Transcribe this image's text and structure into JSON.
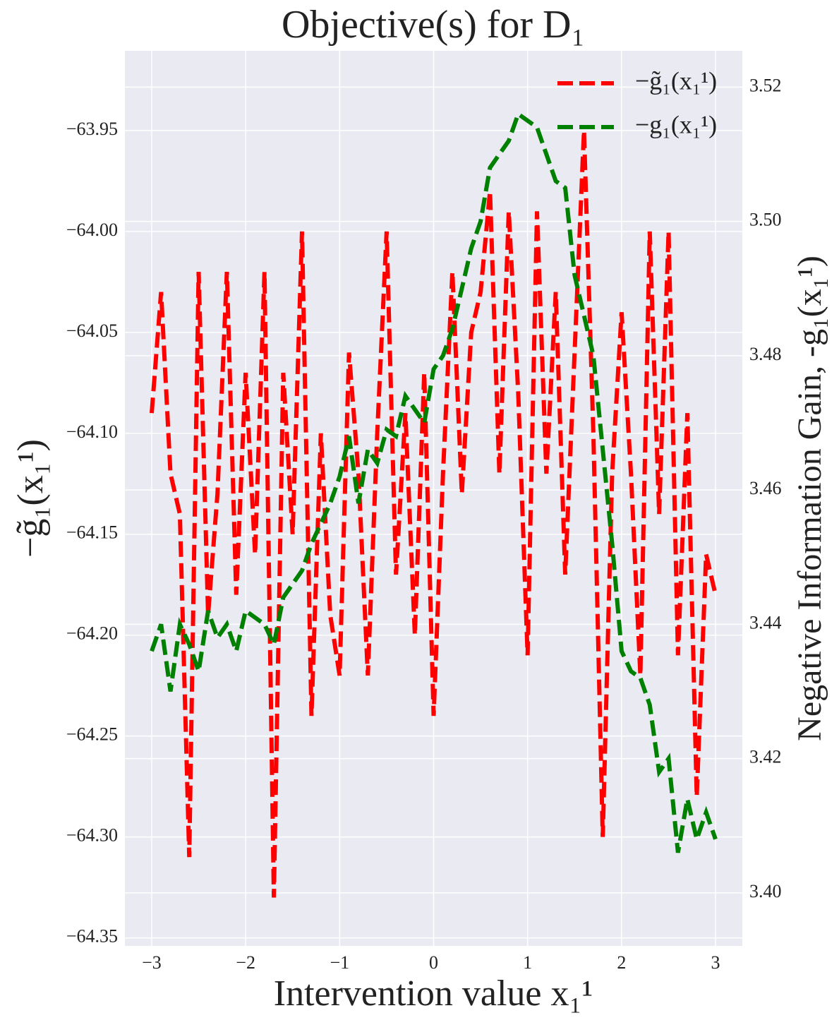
{
  "chart_data": {
    "type": "line",
    "title": "Objective(s) for D₁",
    "x_label": "Intervention value x₁¹",
    "y_label": "−g̃₁(x₁¹)",
    "y2_label": "Negative Information Gain, -g₁(x₁¹)",
    "x": [
      -3.0,
      -2.9,
      -2.8,
      -2.7,
      -2.6,
      -2.5,
      -2.4,
      -2.3,
      -2.2,
      -2.1,
      -2.0,
      -1.9,
      -1.8,
      -1.7,
      -1.6,
      -1.5,
      -1.4,
      -1.3,
      -1.2,
      -1.1,
      -1.0,
      -0.9,
      -0.8,
      -0.7,
      -0.6,
      -0.5,
      -0.4,
      -0.3,
      -0.2,
      -0.1,
      0.0,
      0.1,
      0.2,
      0.3,
      0.4,
      0.5,
      0.6,
      0.7,
      0.8,
      0.9,
      1.0,
      1.1,
      1.2,
      1.3,
      1.4,
      1.5,
      1.6,
      1.7,
      1.8,
      1.9,
      2.0,
      2.1,
      2.2,
      2.3,
      2.4,
      2.5,
      2.6,
      2.7,
      2.8,
      2.9,
      3.0
    ],
    "series": [
      {
        "name": "−g̃₁(x₁¹)",
        "color": "#ff0000",
        "axis": "y",
        "values": [
          -64.09,
          -64.03,
          -64.12,
          -64.14,
          -64.31,
          -64.02,
          -64.19,
          -64.13,
          -64.02,
          -64.18,
          -64.07,
          -64.16,
          -64.02,
          -64.33,
          -64.07,
          -64.15,
          -64.0,
          -64.24,
          -64.1,
          -64.19,
          -64.22,
          -64.06,
          -64.12,
          -64.22,
          -64.1,
          -64.0,
          -64.17,
          -64.09,
          -64.2,
          -64.07,
          -64.24,
          -64.12,
          -64.02,
          -64.13,
          -64.05,
          -64.03,
          -63.98,
          -64.12,
          -63.99,
          -64.08,
          -64.21,
          -63.99,
          -64.12,
          -64.03,
          -64.17,
          -64.06,
          -63.95,
          -64.1,
          -64.3,
          -64.12,
          -64.04,
          -64.12,
          -64.22,
          -64.0,
          -64.14,
          -64.0,
          -64.21,
          -64.09,
          -64.28,
          -64.16,
          -64.18
        ]
      },
      {
        "name": "−g₁(x₁¹)",
        "color": "#008000",
        "axis": "y2",
        "values": [
          3.436,
          3.44,
          3.43,
          3.44,
          3.437,
          3.433,
          3.442,
          3.438,
          3.44,
          3.436,
          3.442,
          3.441,
          3.44,
          3.437,
          3.444,
          3.446,
          3.448,
          3.452,
          3.455,
          3.458,
          3.462,
          3.468,
          3.458,
          3.466,
          3.464,
          3.469,
          3.468,
          3.474,
          3.472,
          3.47,
          3.478,
          3.48,
          3.484,
          3.49,
          3.496,
          3.5,
          3.508,
          3.51,
          3.512,
          3.516,
          3.515,
          3.514,
          3.51,
          3.506,
          3.505,
          3.492,
          3.486,
          3.48,
          3.466,
          3.452,
          3.436,
          3.433,
          3.432,
          3.428,
          3.418,
          3.42,
          3.406,
          3.414,
          3.408,
          3.412,
          3.408
        ]
      }
    ],
    "xlim": [
      -3.285,
      3.285
    ],
    "ylim": [
      -64.354,
      -63.9105
    ],
    "y2lim": [
      3.3921,
      3.5254
    ],
    "xticks": [
      {
        "value": -3,
        "label": "−3"
      },
      {
        "value": -2,
        "label": "−2"
      },
      {
        "value": -1,
        "label": "−1"
      },
      0,
      1,
      2,
      3
    ],
    "yticks": [
      {
        "value": -63.95,
        "label": "−63.95"
      },
      {
        "value": -64.0,
        "label": "−64.00"
      },
      {
        "value": -64.05,
        "label": "−64.05"
      },
      {
        "value": -64.1,
        "label": "−64.10"
      },
      {
        "value": -64.15,
        "label": "−64.15"
      },
      {
        "value": -64.2,
        "label": "−64.20"
      },
      {
        "value": -64.25,
        "label": "−64.25"
      },
      {
        "value": -64.3,
        "label": "−64.30"
      },
      {
        "value": -64.35,
        "label": "−64.35"
      }
    ],
    "y2ticks": [
      {
        "value": 3.4,
        "label": "3.40"
      },
      3.42,
      3.44,
      3.46,
      3.48,
      {
        "value": 3.5,
        "label": "3.50"
      },
      3.52
    ],
    "grid": true,
    "legend": "upper right"
  }
}
